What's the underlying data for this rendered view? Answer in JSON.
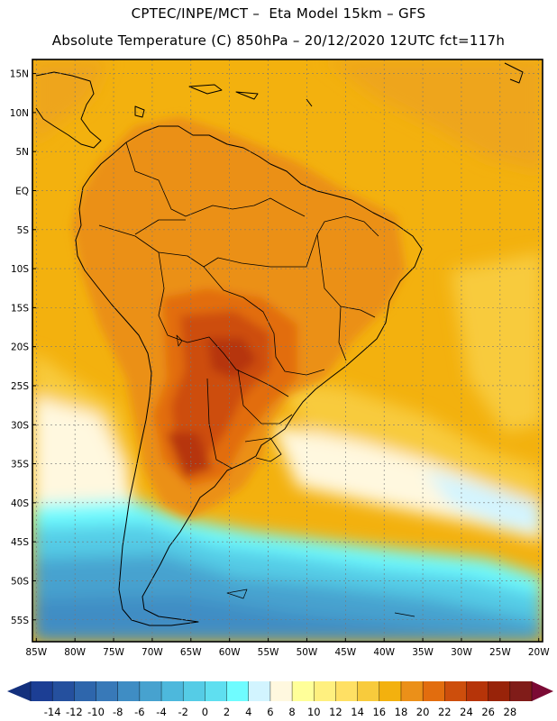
{
  "header": {
    "line1": "CPTEC/INPE/MCT –  Eta Model 15km – GFS",
    "line2": "Absolute Temperature (C) 850hPa – 20/12/2020 12UTC fct=117h"
  },
  "map": {
    "lat_labels": [
      "15N",
      "10N",
      "5N",
      "EQ",
      "5S",
      "10S",
      "15S",
      "20S",
      "25S",
      "30S",
      "35S",
      "40S",
      "45S",
      "50S",
      "55S"
    ],
    "lon_labels": [
      "85W",
      "80W",
      "75W",
      "70W",
      "65W",
      "60W",
      "55W",
      "50W",
      "45W",
      "40W",
      "35W",
      "30W",
      "25W",
      "20W"
    ],
    "lat_values": [
      15,
      10,
      5,
      0,
      -5,
      -10,
      -15,
      -20,
      -25,
      -30,
      -35,
      -40,
      -45,
      -50,
      -55
    ],
    "lon_values": [
      -85,
      -80,
      -75,
      -70,
      -65,
      -60,
      -55,
      -50,
      -45,
      -40,
      -35,
      -30,
      -25,
      -20
    ],
    "extent": {
      "lon_min": -85.5,
      "lon_max": -19.5,
      "lat_min": -57.8,
      "lat_max": 16.8
    }
  },
  "legend": {
    "labels": [
      "-14",
      "-12",
      "-10",
      "-8",
      "-6",
      "-4",
      "-2",
      "0",
      "2",
      "4",
      "6",
      "8",
      "10",
      "12",
      "14",
      "16",
      "18",
      "20",
      "22",
      "24",
      "26",
      "28"
    ],
    "colors": [
      "#1c3e94",
      "#25509e",
      "#2e66ac",
      "#3879b8",
      "#3f8dc4",
      "#47a2cf",
      "#4db8dc",
      "#55cce6",
      "#5fdff0",
      "#6ffcff",
      "#d2f4ff",
      "#fff8df",
      "#ffff99",
      "#fff07f",
      "#ffe064",
      "#f8cb3c",
      "#f3b10e",
      "#eb9019",
      "#e26d0e",
      "#cd4e0c",
      "#b63409",
      "#982309",
      "#801c19"
    ],
    "end_colors": {
      "low": "#13307d",
      "high": "#7b0a34"
    }
  }
}
